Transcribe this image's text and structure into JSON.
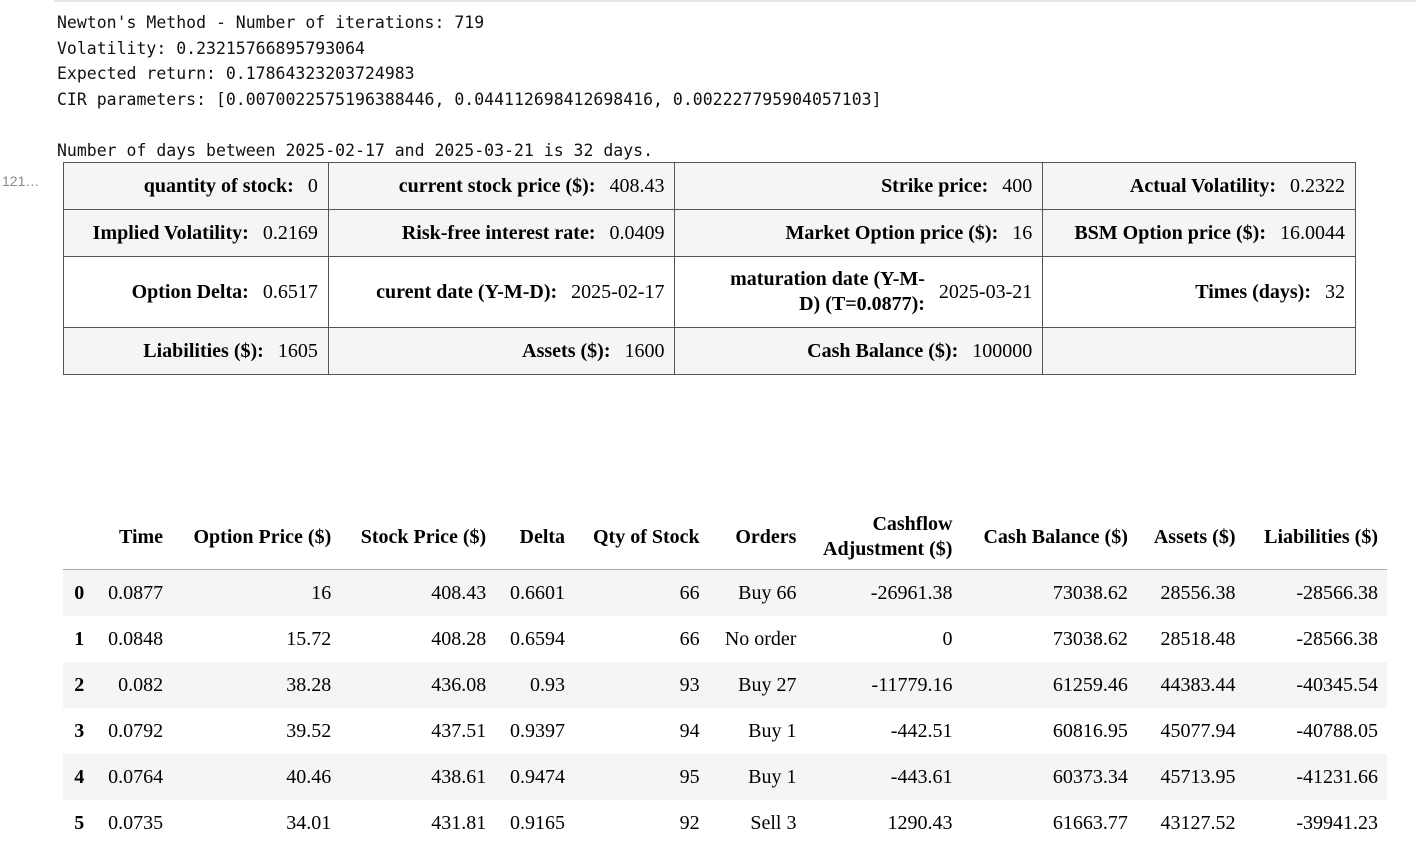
{
  "output": {
    "lines": [
      "Newton's Method - Number of iterations: 719",
      "Volatility: 0.23215766895793064",
      "Expected return: 0.17864323203724983",
      "CIR parameters: [0.0070022575196388446, 0.044112698412698416, 0.002227795904057103]",
      "",
      "Number of days between 2025-02-17 and 2025-03-21 is 32 days."
    ]
  },
  "prompt_label": "121…",
  "info_table": {
    "rows": [
      [
        {
          "label": "quantity of stock:",
          "value": "0"
        },
        {
          "label": "current stock price ($):",
          "value": "408.43"
        },
        {
          "label": "Strike price:",
          "value": "400"
        },
        {
          "label": "Actual Volatility:",
          "value": "0.2322"
        }
      ],
      [
        {
          "label": "Implied Volatility:",
          "value": "0.2169"
        },
        {
          "label": "Risk-free interest rate:",
          "value": "0.0409"
        },
        {
          "label": "Market Option price ($):",
          "value": "16"
        },
        {
          "label": "BSM Option price ($):",
          "value": "16.0044"
        }
      ],
      [
        {
          "label": "Option Delta:",
          "value": "0.6517"
        },
        {
          "label": "curent date (Y-M-D):",
          "value": "2025-02-17"
        },
        {
          "label": "maturation date (Y-M-D) (T=0.0877):",
          "value": "2025-03-21"
        },
        {
          "label": "Times (days):",
          "value": "32"
        }
      ],
      [
        {
          "label": "Liabilities ($):",
          "value": "1605"
        },
        {
          "label": "Assets ($):",
          "value": "1600"
        },
        {
          "label": "Cash Balance ($):",
          "value": "100000"
        },
        {
          "label": "",
          "value": ""
        }
      ]
    ]
  },
  "dataframe": {
    "columns": [
      "",
      "Time",
      "Option Price ($)",
      "Stock Price ($)",
      "Delta",
      "Qty of Stock",
      "Orders",
      "Cashflow Adjustment ($)",
      "Cash Balance ($)",
      "Assets ($)",
      "Liabilities ($)"
    ],
    "rows": [
      [
        "0",
        "0.0877",
        "16",
        "408.43",
        "0.6601",
        "66",
        "Buy 66",
        "-26961.38",
        "73038.62",
        "28556.38",
        "-28566.38"
      ],
      [
        "1",
        "0.0848",
        "15.72",
        "408.28",
        "0.6594",
        "66",
        "No order",
        "0",
        "73038.62",
        "28518.48",
        "-28566.38"
      ],
      [
        "2",
        "0.082",
        "38.28",
        "436.08",
        "0.93",
        "93",
        "Buy 27",
        "-11779.16",
        "61259.46",
        "44383.44",
        "-40345.54"
      ],
      [
        "3",
        "0.0792",
        "39.52",
        "437.51",
        "0.9397",
        "94",
        "Buy 1",
        "-442.51",
        "60816.95",
        "45077.94",
        "-40788.05"
      ],
      [
        "4",
        "0.0764",
        "40.46",
        "438.61",
        "0.9474",
        "95",
        "Buy 1",
        "-443.61",
        "60373.34",
        "45713.95",
        "-41231.66"
      ],
      [
        "5",
        "0.0735",
        "34.01",
        "431.81",
        "0.9165",
        "92",
        "Sell 3",
        "1290.43",
        "61663.77",
        "43127.52",
        "-39941.23"
      ]
    ]
  }
}
